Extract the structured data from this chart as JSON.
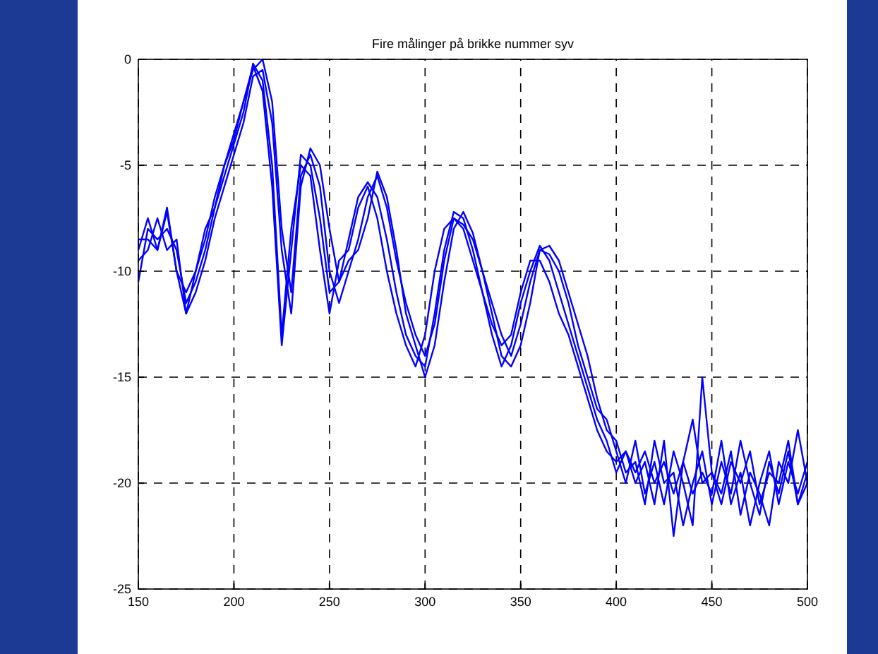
{
  "chart_data": {
    "type": "line",
    "title": "Fire målinger på brikke nummer syv",
    "x": [
      150,
      155,
      160,
      165,
      170,
      175,
      180,
      185,
      190,
      195,
      200,
      205,
      210,
      215,
      220,
      225,
      230,
      235,
      240,
      245,
      250,
      255,
      260,
      265,
      270,
      275,
      280,
      285,
      290,
      295,
      300,
      305,
      310,
      315,
      320,
      325,
      330,
      335,
      340,
      345,
      350,
      355,
      360,
      365,
      370,
      375,
      380,
      385,
      390,
      395,
      400,
      405,
      410,
      415,
      420,
      425,
      430,
      435,
      440,
      445,
      450,
      455,
      460,
      465,
      470,
      475,
      480,
      485,
      490,
      495,
      500
    ],
    "series": [
      {
        "color": "#0000ff",
        "values": [
          -10.5,
          -8,
          -8.5,
          -8,
          -9,
          -11.5,
          -10.5,
          -9,
          -7,
          -5.5,
          -4,
          -2.5,
          -0.2,
          -1,
          -5,
          -13,
          -8,
          -5,
          -5.5,
          -9,
          -12,
          -9.5,
          -9,
          -7,
          -6,
          -7.5,
          -10,
          -12,
          -13.5,
          -14.5,
          -13,
          -10,
          -8,
          -7.5,
          -8,
          -9.5,
          -11,
          -12.5,
          -13.5,
          -13,
          -11,
          -9.5,
          -9.5,
          -10.5,
          -12,
          -13,
          -14.5,
          -16,
          -17.5,
          -18.5,
          -19,
          -18.5,
          -19.5,
          -18.5,
          -20,
          -19,
          -20.5,
          -19,
          -17,
          -20,
          -19.5,
          -21,
          -19,
          -20,
          -18.5,
          -21,
          -19.5,
          -20,
          -18,
          -21,
          -19.5
        ]
      },
      {
        "color": "#0000ff",
        "values": [
          -9,
          -7.5,
          -9,
          -7,
          -10,
          -12,
          -10,
          -8.5,
          -6.5,
          -5,
          -3.5,
          -2,
          -0.5,
          0,
          -2,
          -8,
          -11,
          -5.5,
          -4.5,
          -6,
          -10,
          -11.5,
          -10,
          -8.5,
          -6.5,
          -5.5,
          -7,
          -9.5,
          -11.5,
          -13,
          -14,
          -12.5,
          -9.5,
          -7.5,
          -7.8,
          -8.5,
          -10,
          -11.5,
          -13,
          -14,
          -12.5,
          -10.5,
          -9,
          -9.2,
          -10,
          -11.5,
          -13.5,
          -15,
          -16.5,
          -17,
          -18.5,
          -20,
          -18,
          -20.5,
          -19,
          -21,
          -18.5,
          -20,
          -22,
          -15,
          -19.5,
          -20.5,
          -18.5,
          -21.5,
          -19.5,
          -20.5,
          -22,
          -19,
          -20,
          -17.5,
          -20
        ]
      },
      {
        "color": "#0000ff",
        "values": [
          -9.5,
          -9,
          -7.5,
          -9,
          -8.5,
          -12,
          -11,
          -9.5,
          -7.5,
          -6,
          -4.5,
          -3,
          -0.8,
          -0.5,
          -3,
          -9,
          -12,
          -6,
          -4.2,
          -5,
          -8,
          -10.5,
          -9.5,
          -9,
          -7.5,
          -5.3,
          -6.5,
          -9,
          -12,
          -13.5,
          -15,
          -13.5,
          -10.5,
          -8,
          -7.2,
          -8.2,
          -10,
          -12,
          -14,
          -14.5,
          -13.5,
          -11.5,
          -9,
          -8.8,
          -9.5,
          -11,
          -12.5,
          -14,
          -16,
          -17.5,
          -18,
          -19.5,
          -19,
          -21,
          -18,
          -20,
          -19.5,
          -22,
          -20,
          -18.5,
          -21,
          -19,
          -20.5,
          -18,
          -20,
          -21.5,
          -19,
          -20.5,
          -18.5,
          -21,
          -20
        ]
      },
      {
        "color": "#0000ff",
        "values": [
          -8.5,
          -8.5,
          -9,
          -7.2,
          -10,
          -11,
          -10,
          -8,
          -7,
          -5,
          -3.8,
          -2,
          -0.3,
          -1.5,
          -6,
          -13.5,
          -9,
          -4.5,
          -5,
          -7.5,
          -11,
          -10.5,
          -8.5,
          -6.5,
          -5.8,
          -6.5,
          -8.5,
          -11,
          -13,
          -14,
          -14.5,
          -12,
          -9,
          -7.2,
          -7.5,
          -9,
          -11,
          -13,
          -14.5,
          -13.5,
          -11.5,
          -10,
          -8.8,
          -9.5,
          -11,
          -12.5,
          -14,
          -15.5,
          -17,
          -18,
          -19.5,
          -18.5,
          -20,
          -19,
          -21,
          -18,
          -22.5,
          -19,
          -20.5,
          -19.5,
          -20.5,
          -18,
          -21,
          -19.5,
          -22,
          -20,
          -18.5,
          -21,
          -19,
          -20.5,
          -19
        ]
      }
    ],
    "xlim": [
      150,
      500
    ],
    "ylim": [
      -25,
      0
    ],
    "xticks": [
      150,
      200,
      250,
      300,
      350,
      400,
      450,
      500
    ],
    "yticks": [
      -25,
      -20,
      -15,
      -10,
      -5,
      0
    ],
    "grid": true,
    "line_style": "solid"
  }
}
